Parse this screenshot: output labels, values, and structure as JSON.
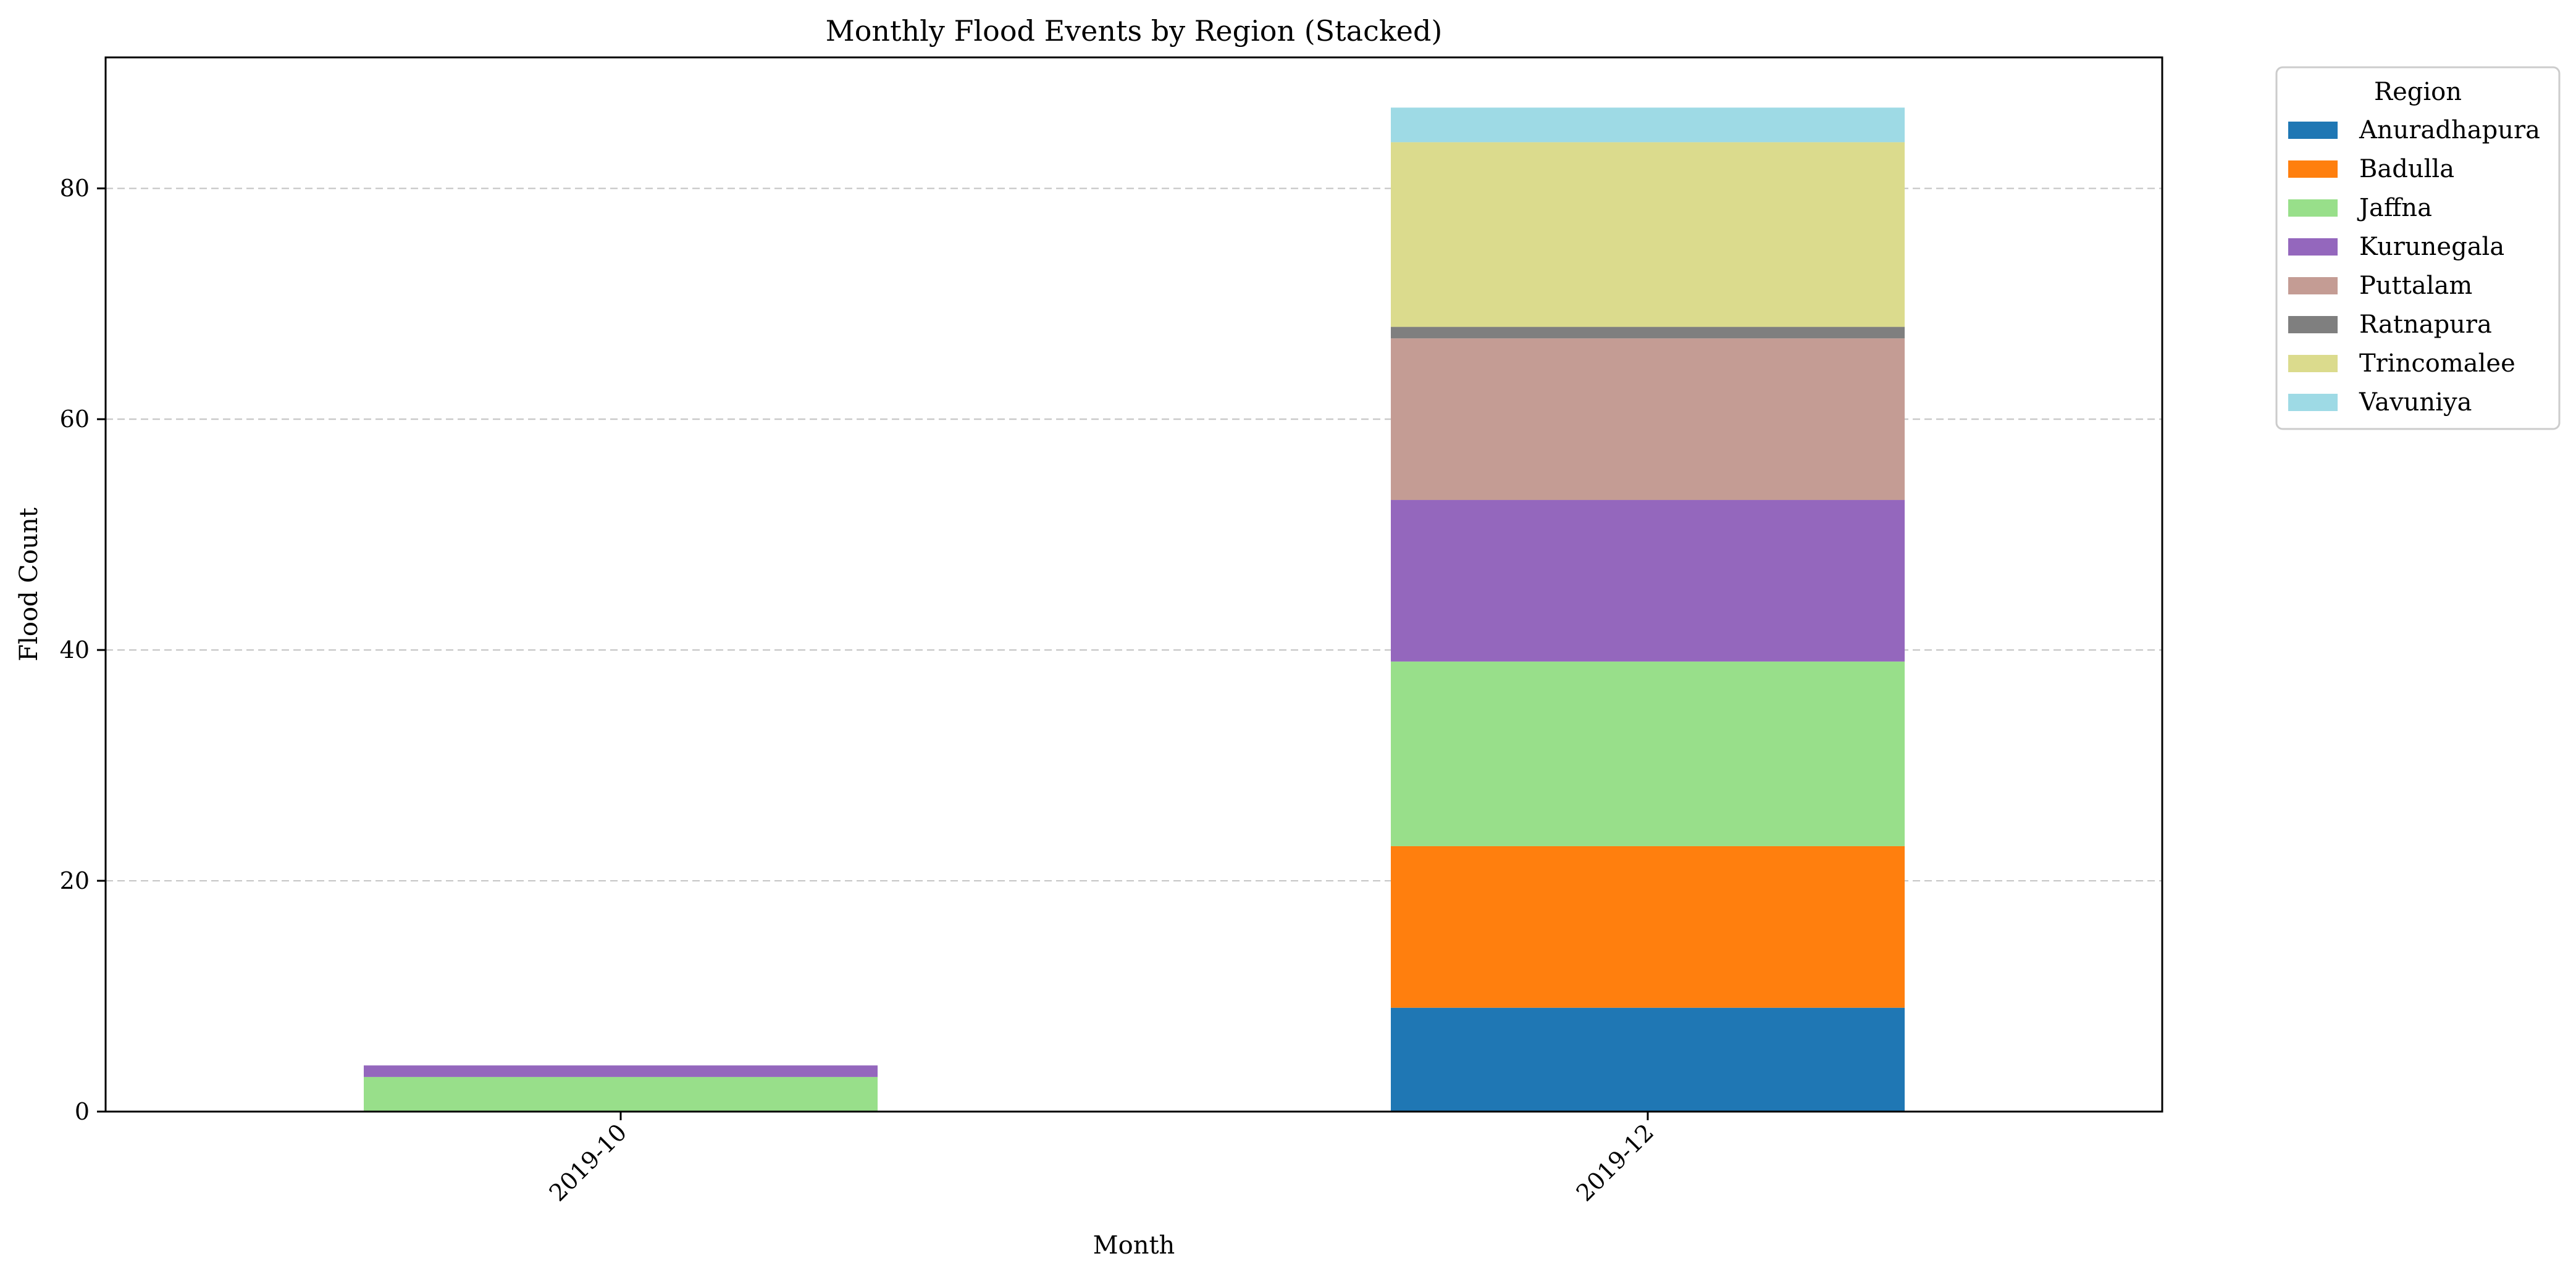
{
  "chart_data": {
    "type": "bar",
    "stacked": true,
    "title": "Monthly Flood Events by Region (Stacked)",
    "xlabel": "Month",
    "ylabel": "Flood Count",
    "categories": [
      "2019-10",
      "2019-12"
    ],
    "ylim": [
      0,
      91.35
    ],
    "yticks": [
      0,
      20,
      40,
      60,
      80
    ],
    "grid": "y-dashed",
    "legend": {
      "title": "Region",
      "placement": "outside-top-right"
    },
    "series": [
      {
        "name": "Anuradhapura",
        "color": "#1f77b4",
        "values": [
          0,
          9
        ]
      },
      {
        "name": "Badulla",
        "color": "#ff7f0e",
        "values": [
          0,
          14
        ]
      },
      {
        "name": "Jaffna",
        "color": "#98df8a",
        "values": [
          3,
          16
        ]
      },
      {
        "name": "Kurunegala",
        "color": "#9467bd",
        "values": [
          1,
          14
        ]
      },
      {
        "name": "Puttalam",
        "color": "#c49c94",
        "values": [
          0,
          14
        ]
      },
      {
        "name": "Ratnapura",
        "color": "#7f7f7f",
        "values": [
          0,
          1
        ]
      },
      {
        "name": "Trincomalee",
        "color": "#dbdb8d",
        "values": [
          0,
          16
        ]
      },
      {
        "name": "Vavuniya",
        "color": "#9edae5",
        "values": [
          0,
          3
        ]
      }
    ]
  }
}
